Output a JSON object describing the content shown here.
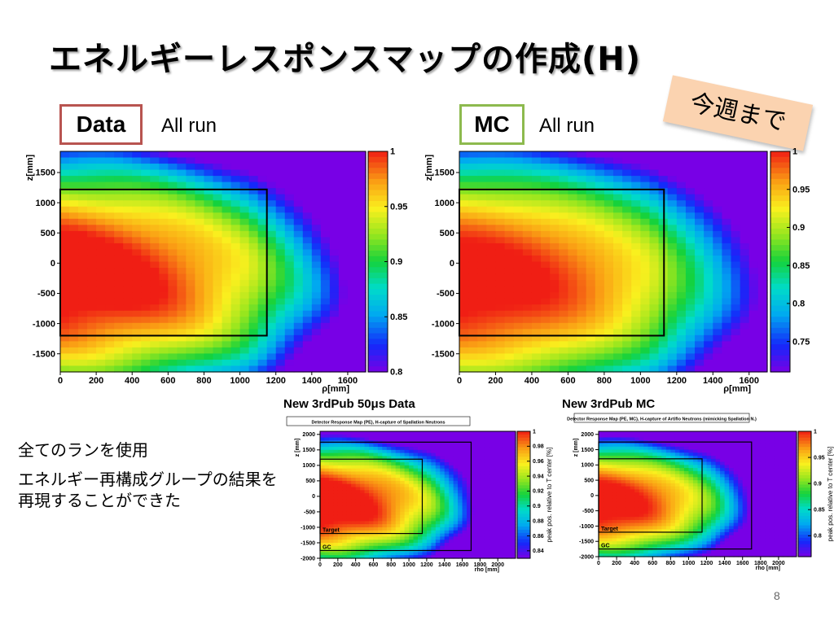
{
  "slide": {
    "title": "エネルギーレスポンスマップの作成(H)",
    "sticker": "今週まで",
    "page_number": "8",
    "bullets": [
      "全てのランを使用",
      "エネルギー再構成グループの結果を再現することができた"
    ]
  },
  "top_panels": [
    {
      "tag": "Data",
      "label": "All run",
      "tag_color": "#b85450"
    },
    {
      "tag": "MC",
      "label": "All run",
      "tag_color": "#8dba4e"
    }
  ],
  "bottom_panels": [
    {
      "subtitle": "New 3rdPub 50μs Data",
      "header": "Detector Response Map (PE), H-capture of Spallation Neutrons"
    },
    {
      "subtitle": "New 3rdPub MC",
      "header": "Detector Response Map (PE, MC), H-capture of Artiflo Neutrons (mimicking Spallation N.)"
    }
  ],
  "chart_data": [
    {
      "type": "heatmap",
      "name": "Data All run",
      "xlabel": "ρ[mm]",
      "ylabel": "z[mm]",
      "xlim": [
        0,
        1700
      ],
      "ylim": [
        -1800,
        1850
      ],
      "xticks": [
        0,
        200,
        400,
        600,
        800,
        1000,
        1200,
        1400,
        1600
      ],
      "yticks": [
        -1500,
        -1000,
        -500,
        0,
        500,
        1000,
        1500
      ],
      "zlim": [
        0.8,
        1.0
      ],
      "zticks": [
        1,
        0.95,
        0.9,
        0.85,
        0.8
      ],
      "box": {
        "rho_max": 1150,
        "z_min": -1200,
        "z_max": 1220
      }
    },
    {
      "type": "heatmap",
      "name": "MC All run",
      "xlabel": "ρ[mm]",
      "ylabel": "z[mm]",
      "xlim": [
        0,
        1700
      ],
      "ylim": [
        -1800,
        1850
      ],
      "xticks": [
        0,
        200,
        400,
        600,
        800,
        1000,
        1200,
        1400,
        1600
      ],
      "yticks": [
        -1500,
        -1000,
        -500,
        0,
        500,
        1000,
        1500
      ],
      "zlim": [
        0.71,
        1.0
      ],
      "zticks": [
        1,
        0.95,
        0.9,
        0.85,
        0.8,
        0.75
      ],
      "box": {
        "rho_max": 1130,
        "z_min": -1200,
        "z_max": 1220
      }
    },
    {
      "type": "heatmap",
      "name": "New 3rdPub 50μs Data",
      "xlabel": "rho [mm]",
      "ylabel": "z [mm]",
      "zlabel": "peak pos. relative to T center [%]",
      "xlim": [
        0,
        2200
      ],
      "ylim": [
        -2000,
        2100
      ],
      "xticks": [
        0,
        200,
        400,
        600,
        800,
        1000,
        1200,
        1400,
        1600,
        1800,
        2000
      ],
      "yticks": [
        -2000,
        -1500,
        -1000,
        -500,
        0,
        500,
        1000,
        1500,
        2000
      ],
      "zlim": [
        0.83,
        1.0
      ],
      "zticks": [
        1,
        0.98,
        0.96,
        0.94,
        0.92,
        0.9,
        0.88,
        0.86,
        0.84
      ],
      "regions": [
        {
          "label": "Target",
          "rho_max": 1150,
          "z_min": -1200,
          "z_max": 1200
        },
        {
          "label": "GC",
          "rho_max": 1700,
          "z_min": -1750,
          "z_max": 1750
        }
      ]
    },
    {
      "type": "heatmap",
      "name": "New 3rdPub MC",
      "xlabel": "rho [mm]",
      "ylabel": "z [mm]",
      "zlabel": "peak pos. relative to T center [%]",
      "xlim": [
        0,
        2200
      ],
      "ylim": [
        -2000,
        2100
      ],
      "xticks": [
        0,
        200,
        400,
        600,
        800,
        1000,
        1200,
        1400,
        1600,
        1800,
        2000
      ],
      "yticks": [
        -2000,
        -1500,
        -1000,
        -500,
        0,
        500,
        1000,
        1500,
        2000
      ],
      "zlim": [
        0.76,
        1.0
      ],
      "zticks": [
        1,
        0.95,
        0.9,
        0.85,
        0.8
      ],
      "regions": [
        {
          "label": "Target",
          "rho_max": 1150,
          "z_min": -1200,
          "z_max": 1200
        },
        {
          "label": "GC",
          "rho_max": 1700,
          "z_min": -1750,
          "z_max": 1750
        }
      ]
    }
  ]
}
